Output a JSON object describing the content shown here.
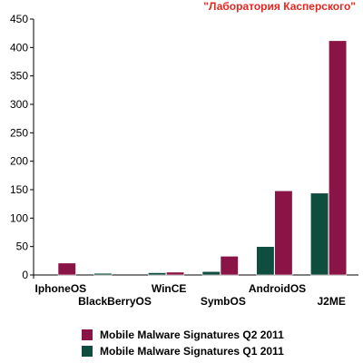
{
  "watermark": "\"Лаборатория Касперского\"",
  "chart_data": {
    "type": "bar",
    "categories": [
      "IphoneOS",
      "BlackBerryOS",
      "WinCE",
      "SymbOS",
      "AndroidOS",
      "J2ME"
    ],
    "series": [
      {
        "name": "Mobile Malware Signatures Q1 2011",
        "color": "#0f4d3f",
        "values": [
          0,
          3,
          4,
          6,
          50,
          144
        ]
      },
      {
        "name": "Mobile Malware Signatures Q2 2011",
        "color": "#8a1446",
        "values": [
          21,
          0,
          5,
          33,
          148,
          412
        ]
      }
    ],
    "ylim": [
      0,
      450
    ],
    "yticks": [
      0,
      50,
      100,
      150,
      200,
      250,
      300,
      350,
      400,
      450
    ],
    "grid": false,
    "legend": "bottom",
    "legend_order": [
      1,
      0
    ]
  }
}
